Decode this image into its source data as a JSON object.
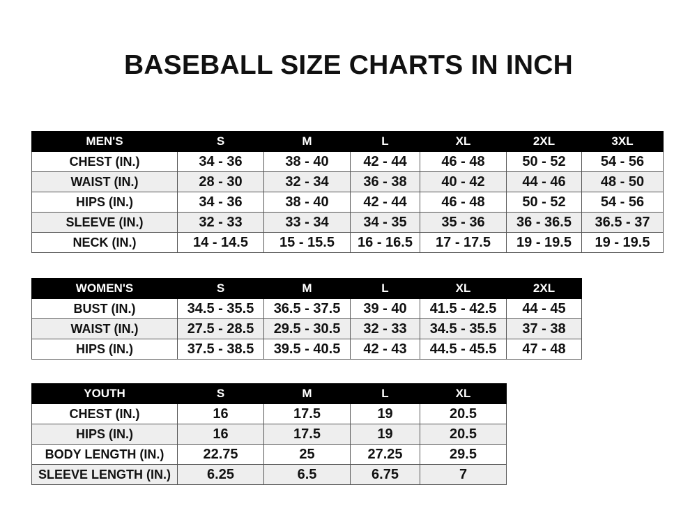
{
  "title": "BASEBALL SIZE CHARTS IN INCH",
  "tables": [
    {
      "id": "men",
      "header": [
        "MEN'S",
        "S",
        "M",
        "L",
        "XL",
        "2XL",
        "3XL"
      ],
      "rows": [
        [
          "CHEST (IN.)",
          "34 - 36",
          "38 - 40",
          "42 - 44",
          "46 - 48",
          "50 - 52",
          "54 - 56"
        ],
        [
          "WAIST (IN.)",
          "28 - 30",
          "32 - 34",
          "36 - 38",
          "40 - 42",
          "44 - 46",
          "48 - 50"
        ],
        [
          "HIPS (IN.)",
          "34 - 36",
          "38 - 40",
          "42 - 44",
          "46 - 48",
          "50 - 52",
          "54 - 56"
        ],
        [
          "SLEEVE (IN.)",
          "32 - 33",
          "33 - 34",
          "34 - 35",
          "35 - 36",
          "36 - 36.5",
          "36.5 - 37"
        ],
        [
          "NECK (IN.)",
          "14 - 14.5",
          "15 - 15.5",
          "16 - 16.5",
          "17 - 17.5",
          "19 - 19.5",
          "19 - 19.5"
        ]
      ]
    },
    {
      "id": "women",
      "header": [
        "WOMEN'S",
        "S",
        "M",
        "L",
        "XL",
        "2XL"
      ],
      "rows": [
        [
          "BUST (IN.)",
          "34.5 - 35.5",
          "36.5 - 37.5",
          "39 - 40",
          "41.5 - 42.5",
          "44 - 45"
        ],
        [
          "WAIST (IN.)",
          "27.5 - 28.5",
          "29.5 - 30.5",
          "32 - 33",
          "34.5 - 35.5",
          "37 - 38"
        ],
        [
          "HIPS (IN.)",
          "37.5 - 38.5",
          "39.5 - 40.5",
          "42 - 43",
          "44.5 - 45.5",
          "47 - 48"
        ]
      ]
    },
    {
      "id": "youth",
      "header": [
        "YOUTH",
        "S",
        "M",
        "L",
        "XL"
      ],
      "rows": [
        [
          "CHEST (IN.)",
          "16",
          "17.5",
          "19",
          "20.5"
        ],
        [
          "HIPS (IN.)",
          "16",
          "17.5",
          "19",
          "20.5"
        ],
        [
          "BODY LENGTH (IN.)",
          "22.75",
          "25",
          "27.25",
          "29.5"
        ],
        [
          "SLEEVE LENGTH (IN.)",
          "6.25",
          "6.5",
          "6.75",
          "7"
        ]
      ]
    }
  ]
}
